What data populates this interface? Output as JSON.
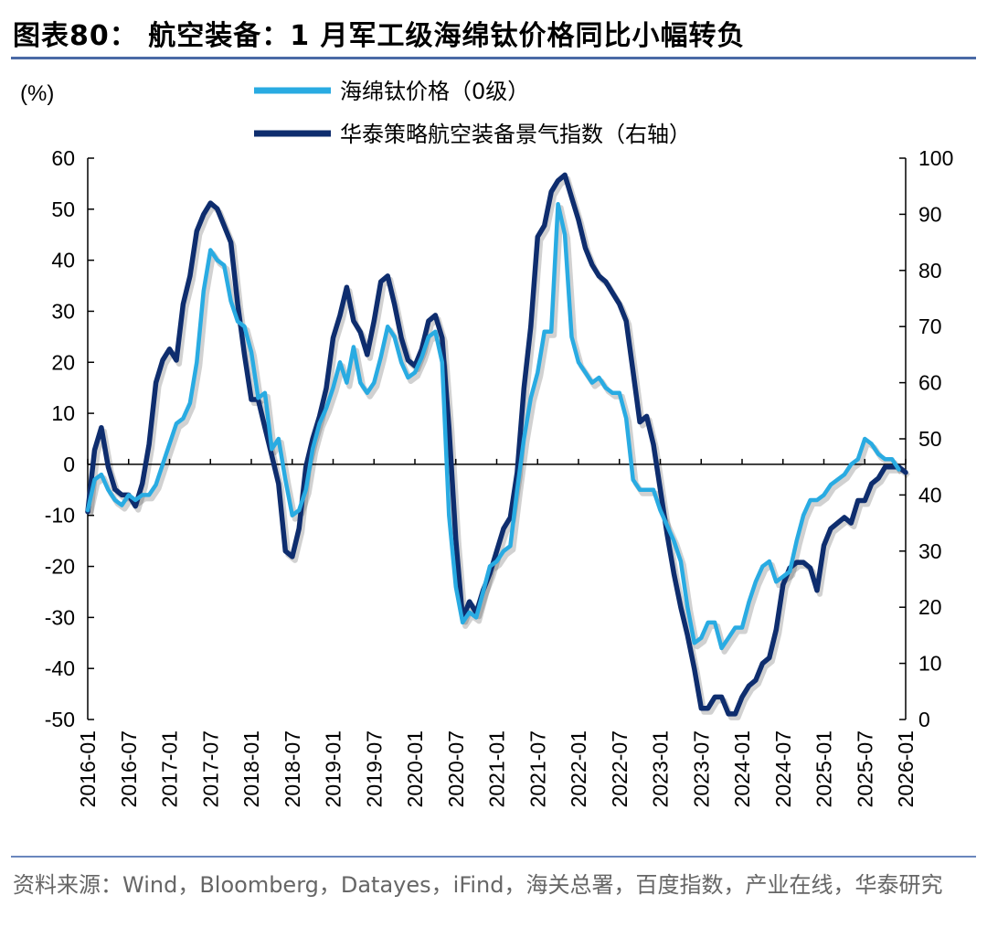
{
  "header": {
    "title": "图表80： 航空装备：1 月军工级海绵钛价格同比小幅转负"
  },
  "footer": {
    "source": "资料来源：Wind，Bloomberg，Datayes，iFind，海关总署，百度指数，产业在线，华泰研究"
  },
  "colors": {
    "left_series": "#29abe2",
    "right_series": "#0e2d6e",
    "rule": "#4a6aa6"
  },
  "chart_data": {
    "type": "line",
    "unit_label": "(%)",
    "x_tick_labels": [
      "2016-01",
      "2016-07",
      "2017-01",
      "2017-07",
      "2018-01",
      "2018-07",
      "2019-01",
      "2019-07",
      "2020-01",
      "2020-07",
      "2021-01",
      "2021-07",
      "2022-01",
      "2022-07",
      "2023-01",
      "2023-07",
      "2024-01",
      "2024-07",
      "2025-01",
      "2025-07",
      "2026-01"
    ],
    "x_range": [
      "2016-01",
      "2026-01"
    ],
    "y_left": {
      "min": -50,
      "max": 60,
      "ticks": [
        60,
        50,
        40,
        30,
        20,
        10,
        0,
        -10,
        -20,
        -30,
        -40,
        -50
      ]
    },
    "y_right": {
      "min": 0,
      "max": 100,
      "ticks": [
        100,
        90,
        80,
        70,
        60,
        50,
        40,
        30,
        20,
        10,
        0
      ]
    },
    "grid": false,
    "zero_line": true,
    "legend_position": "top-center",
    "series": [
      {
        "name": "海绵钛价格（0级）",
        "axis": "left",
        "color": "#29abe2",
        "points": [
          [
            "2016-01",
            -9
          ],
          [
            "2016-02",
            -3
          ],
          [
            "2016-03",
            -2
          ],
          [
            "2016-04",
            -5
          ],
          [
            "2016-05",
            -7
          ],
          [
            "2016-06",
            -8
          ],
          [
            "2016-07",
            -6
          ],
          [
            "2016-08",
            -7
          ],
          [
            "2016-09",
            -6
          ],
          [
            "2016-10",
            -6
          ],
          [
            "2016-11",
            -4
          ],
          [
            "2016-12",
            0
          ],
          [
            "2017-01",
            4
          ],
          [
            "2017-02",
            8
          ],
          [
            "2017-03",
            9
          ],
          [
            "2017-04",
            12
          ],
          [
            "2017-05",
            20
          ],
          [
            "2017-06",
            34
          ],
          [
            "2017-07",
            42
          ],
          [
            "2017-08",
            40
          ],
          [
            "2017-09",
            39
          ],
          [
            "2017-10",
            32
          ],
          [
            "2017-11",
            28
          ],
          [
            "2017-12",
            27
          ],
          [
            "2018-01",
            22
          ],
          [
            "2018-02",
            13
          ],
          [
            "2018-03",
            14
          ],
          [
            "2018-04",
            3
          ],
          [
            "2018-05",
            5
          ],
          [
            "2018-06",
            -3
          ],
          [
            "2018-07",
            -10
          ],
          [
            "2018-08",
            -9
          ],
          [
            "2018-09",
            -5
          ],
          [
            "2018-10",
            3
          ],
          [
            "2018-11",
            8
          ],
          [
            "2018-12",
            11
          ],
          [
            "2019-01",
            15
          ],
          [
            "2019-02",
            20
          ],
          [
            "2019-03",
            16
          ],
          [
            "2019-04",
            23
          ],
          [
            "2019-05",
            16
          ],
          [
            "2019-06",
            14
          ],
          [
            "2019-07",
            16
          ],
          [
            "2019-08",
            21
          ],
          [
            "2019-09",
            27
          ],
          [
            "2019-10",
            25
          ],
          [
            "2019-11",
            20
          ],
          [
            "2019-12",
            17
          ],
          [
            "2020-01",
            18
          ],
          [
            "2020-02",
            21
          ],
          [
            "2020-03",
            25
          ],
          [
            "2020-04",
            26
          ],
          [
            "2020-05",
            20
          ],
          [
            "2020-06",
            -10
          ],
          [
            "2020-07",
            -24
          ],
          [
            "2020-08",
            -31
          ],
          [
            "2020-09",
            -29
          ],
          [
            "2020-10",
            -30
          ],
          [
            "2020-11",
            -25
          ],
          [
            "2020-12",
            -20
          ],
          [
            "2021-01",
            -19
          ],
          [
            "2021-02",
            -17
          ],
          [
            "2021-03",
            -16
          ],
          [
            "2021-04",
            -5
          ],
          [
            "2021-05",
            5
          ],
          [
            "2021-06",
            13
          ],
          [
            "2021-07",
            18
          ],
          [
            "2021-08",
            26
          ],
          [
            "2021-09",
            26
          ],
          [
            "2021-10",
            51
          ],
          [
            "2021-11",
            45
          ],
          [
            "2021-12",
            25
          ],
          [
            "2022-01",
            20
          ],
          [
            "2022-02",
            18
          ],
          [
            "2022-03",
            16
          ],
          [
            "2022-04",
            17
          ],
          [
            "2022-05",
            15
          ],
          [
            "2022-06",
            14
          ],
          [
            "2022-07",
            14
          ],
          [
            "2022-08",
            9
          ],
          [
            "2022-09",
            -3
          ],
          [
            "2022-10",
            -5
          ],
          [
            "2022-11",
            -5
          ],
          [
            "2022-12",
            -5
          ],
          [
            "2023-01",
            -9
          ],
          [
            "2023-02",
            -12
          ],
          [
            "2023-03",
            -15
          ],
          [
            "2023-04",
            -19
          ],
          [
            "2023-05",
            -28
          ],
          [
            "2023-06",
            -35
          ],
          [
            "2023-07",
            -34
          ],
          [
            "2023-08",
            -31
          ],
          [
            "2023-09",
            -31
          ],
          [
            "2023-10",
            -36
          ],
          [
            "2023-11",
            -34
          ],
          [
            "2023-12",
            -32
          ],
          [
            "2024-01",
            -32
          ],
          [
            "2024-02",
            -27
          ],
          [
            "2024-03",
            -23
          ],
          [
            "2024-04",
            -20
          ],
          [
            "2024-05",
            -19
          ],
          [
            "2024-06",
            -23
          ],
          [
            "2024-07",
            -22
          ],
          [
            "2024-08",
            -21
          ],
          [
            "2024-09",
            -15
          ],
          [
            "2024-10",
            -10
          ],
          [
            "2024-11",
            -7
          ],
          [
            "2024-12",
            -7
          ],
          [
            "2025-01",
            -6
          ],
          [
            "2025-02",
            -4
          ],
          [
            "2025-03",
            -3
          ],
          [
            "2025-04",
            -2
          ],
          [
            "2025-05",
            0
          ],
          [
            "2025-06",
            1
          ],
          [
            "2025-07",
            5
          ],
          [
            "2025-08",
            4
          ],
          [
            "2025-09",
            2
          ],
          [
            "2025-10",
            1
          ],
          [
            "2025-11",
            1
          ],
          [
            "2025-12",
            -1
          ]
        ]
      },
      {
        "name": "华泰策略航空装备景气指数（右轴）",
        "axis": "right",
        "color": "#0e2d6e",
        "points": [
          [
            "2016-01",
            37
          ],
          [
            "2016-02",
            48
          ],
          [
            "2016-03",
            52
          ],
          [
            "2016-04",
            45
          ],
          [
            "2016-05",
            41
          ],
          [
            "2016-06",
            40
          ],
          [
            "2016-07",
            40
          ],
          [
            "2016-08",
            38
          ],
          [
            "2016-09",
            42
          ],
          [
            "2016-10",
            49
          ],
          [
            "2016-11",
            60
          ],
          [
            "2016-12",
            64
          ],
          [
            "2017-01",
            66
          ],
          [
            "2017-02",
            64
          ],
          [
            "2017-03",
            74
          ],
          [
            "2017-04",
            79
          ],
          [
            "2017-05",
            87
          ],
          [
            "2017-06",
            90
          ],
          [
            "2017-07",
            92
          ],
          [
            "2017-08",
            91
          ],
          [
            "2017-09",
            88
          ],
          [
            "2017-10",
            85
          ],
          [
            "2017-11",
            74
          ],
          [
            "2017-12",
            65
          ],
          [
            "2018-01",
            57
          ],
          [
            "2018-02",
            57
          ],
          [
            "2018-03",
            52
          ],
          [
            "2018-04",
            47
          ],
          [
            "2018-05",
            42
          ],
          [
            "2018-06",
            30
          ],
          [
            "2018-07",
            29
          ],
          [
            "2018-08",
            34
          ],
          [
            "2018-09",
            45
          ],
          [
            "2018-10",
            50
          ],
          [
            "2018-11",
            54
          ],
          [
            "2018-12",
            59
          ],
          [
            "2019-01",
            68
          ],
          [
            "2019-02",
            72
          ],
          [
            "2019-03",
            77
          ],
          [
            "2019-04",
            71
          ],
          [
            "2019-05",
            69
          ],
          [
            "2019-06",
            65
          ],
          [
            "2019-07",
            71
          ],
          [
            "2019-08",
            78
          ],
          [
            "2019-09",
            79
          ],
          [
            "2019-10",
            74
          ],
          [
            "2019-11",
            68
          ],
          [
            "2019-12",
            64
          ],
          [
            "2020-01",
            63
          ],
          [
            "2020-02",
            66
          ],
          [
            "2020-03",
            71
          ],
          [
            "2020-04",
            72
          ],
          [
            "2020-05",
            68
          ],
          [
            "2020-06",
            52
          ],
          [
            "2020-07",
            32
          ],
          [
            "2020-08",
            18
          ],
          [
            "2020-09",
            21
          ],
          [
            "2020-10",
            19
          ],
          [
            "2020-11",
            23
          ],
          [
            "2020-12",
            26
          ],
          [
            "2021-01",
            30
          ],
          [
            "2021-02",
            34
          ],
          [
            "2021-03",
            36
          ],
          [
            "2021-04",
            44
          ],
          [
            "2021-05",
            59
          ],
          [
            "2021-06",
            70
          ],
          [
            "2021-07",
            86
          ],
          [
            "2021-08",
            88
          ],
          [
            "2021-09",
            94
          ],
          [
            "2021-10",
            96
          ],
          [
            "2021-11",
            97
          ],
          [
            "2021-12",
            93
          ],
          [
            "2022-01",
            89
          ],
          [
            "2022-02",
            84
          ],
          [
            "2022-03",
            81
          ],
          [
            "2022-04",
            79
          ],
          [
            "2022-05",
            78
          ],
          [
            "2022-06",
            76
          ],
          [
            "2022-07",
            74
          ],
          [
            "2022-08",
            71
          ],
          [
            "2022-09",
            62
          ],
          [
            "2022-10",
            53
          ],
          [
            "2022-11",
            54
          ],
          [
            "2022-12",
            49
          ],
          [
            "2023-01",
            41
          ],
          [
            "2023-02",
            33
          ],
          [
            "2023-03",
            26
          ],
          [
            "2023-04",
            20
          ],
          [
            "2023-05",
            15
          ],
          [
            "2023-06",
            9
          ],
          [
            "2023-07",
            2
          ],
          [
            "2023-08",
            2
          ],
          [
            "2023-09",
            4
          ],
          [
            "2023-10",
            4
          ],
          [
            "2023-11",
            1
          ],
          [
            "2023-12",
            1
          ],
          [
            "2024-01",
            4
          ],
          [
            "2024-02",
            6
          ],
          [
            "2024-03",
            7
          ],
          [
            "2024-04",
            10
          ],
          [
            "2024-05",
            11
          ],
          [
            "2024-06",
            16
          ],
          [
            "2024-07",
            24
          ],
          [
            "2024-08",
            27
          ],
          [
            "2024-09",
            28
          ],
          [
            "2024-10",
            28
          ],
          [
            "2024-11",
            27
          ],
          [
            "2024-12",
            23
          ],
          [
            "2025-01",
            31
          ],
          [
            "2025-02",
            34
          ],
          [
            "2025-03",
            35
          ],
          [
            "2025-04",
            36
          ],
          [
            "2025-05",
            35
          ],
          [
            "2025-06",
            39
          ],
          [
            "2025-07",
            39
          ],
          [
            "2025-08",
            42
          ],
          [
            "2025-09",
            43
          ],
          [
            "2025-10",
            45
          ],
          [
            "2025-11",
            45
          ],
          [
            "2025-12",
            45
          ],
          [
            "2026-01",
            44
          ]
        ]
      }
    ]
  }
}
